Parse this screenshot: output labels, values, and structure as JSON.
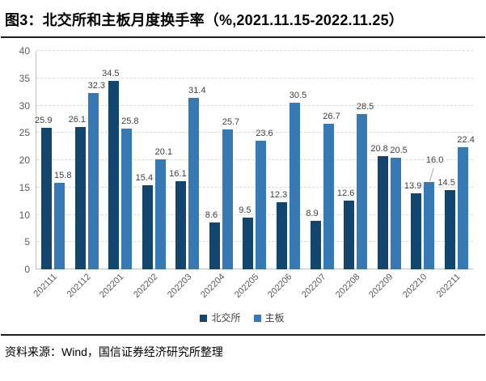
{
  "title": "图3：北交所和主板月度换手率（%,2021.11.15-2022.11.25）",
  "source": "资料来源：Wind，国信证券经济研究所整理",
  "chart_data": {
    "type": "bar",
    "title": "北交所和主板月度换手率",
    "xlabel": "",
    "ylabel": "",
    "categories": [
      "202111",
      "202112",
      "202201",
      "202202",
      "202203",
      "202204",
      "202205",
      "202206",
      "202207",
      "202208",
      "202209",
      "202210",
      "202211"
    ],
    "series": [
      {
        "name": "北交所",
        "color": "#13466F",
        "values": [
          25.9,
          26.1,
          34.5,
          15.4,
          16.1,
          8.6,
          9.5,
          12.3,
          8.9,
          12.6,
          20.8,
          13.9,
          14.5
        ],
        "labels": [
          "25.9",
          "26.1",
          "34.5",
          "15.4",
          "16.1",
          "8.6",
          "9.5",
          "12.3",
          "8.9",
          "12.6",
          "20.8",
          "13.9",
          "14.5"
        ]
      },
      {
        "name": "主板",
        "color": "#3679B5",
        "values": [
          15.8,
          32.3,
          25.8,
          20.1,
          31.4,
          25.7,
          23.6,
          30.5,
          26.7,
          28.5,
          20.5,
          16.0,
          22.4
        ],
        "labels": [
          "15.8",
          "32.3",
          "25.8",
          "20.1",
          "31.4",
          "25.7",
          "23.6",
          "30.5",
          "26.7",
          "28.5",
          "20.5",
          "16.0",
          "22.4"
        ]
      }
    ],
    "ylim": [
      0,
      40
    ],
    "yticks": [
      0,
      5,
      10,
      15,
      20,
      25,
      30,
      35,
      40
    ],
    "grid": "horizontal-dashed",
    "legend_position": "bottom",
    "callout": {
      "series": 1,
      "index": 11
    }
  },
  "colors": {
    "bse_bar": "#13466F",
    "main_board_bar": "#3679B5",
    "gridline": "#D9D9D9",
    "axis_line": "#BFBFBF",
    "tick_label": "#595959",
    "data_label": "#404040",
    "title_text": "#000000",
    "rule": "#1f1f1f"
  }
}
